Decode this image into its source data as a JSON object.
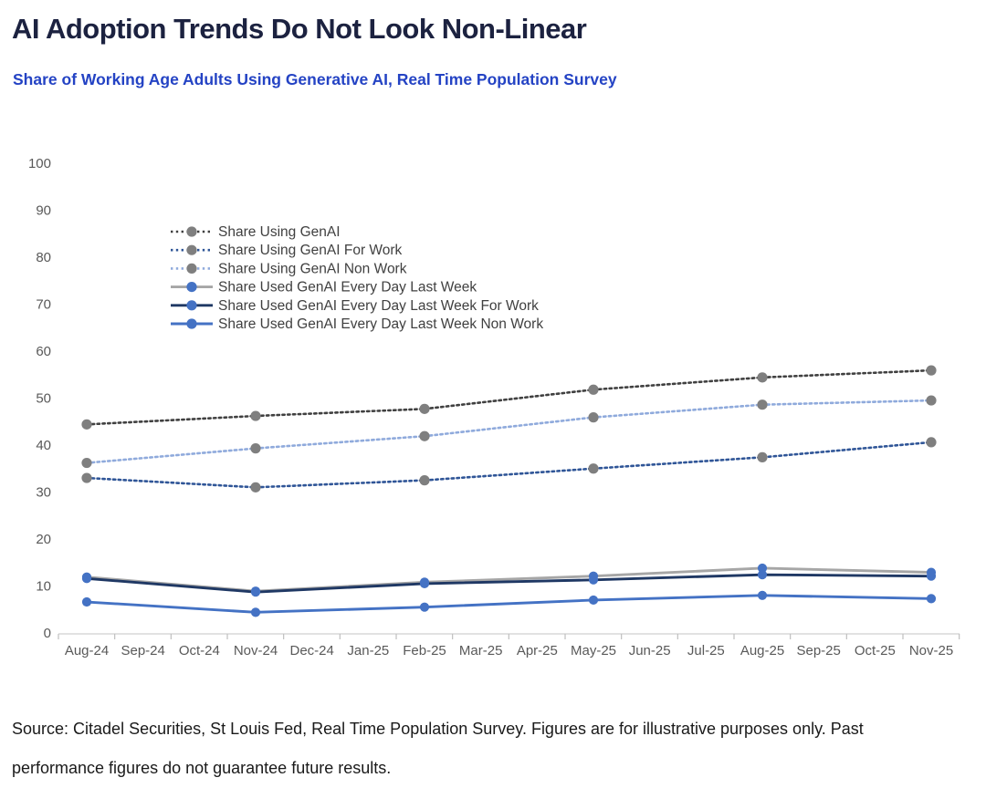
{
  "header": {
    "title": "AI Adoption Trends Do Not Look Non-Linear",
    "subtitle": "Share of Working Age Adults Using Generative AI, Real Time Population Survey"
  },
  "footer": {
    "source_line1": "Source: Citadel Securities, St Louis Fed, Real Time Population Survey. Figures are for illustrative purposes only. Past",
    "source_line2": "performance figures do not guarantee future results."
  },
  "colors": {
    "title": "#1c2240",
    "subtitle": "#2443c4",
    "axis_label": "#595959",
    "legend_text": "#404040",
    "axis_line": "#d9d9d9",
    "tick": "#bfbfbf"
  },
  "chart_data": {
    "type": "line",
    "title": "",
    "xlabel": "",
    "ylabel": "",
    "ylim": [
      0,
      100
    ],
    "y_ticks": [
      0,
      10,
      20,
      30,
      40,
      50,
      60,
      70,
      80,
      90,
      100
    ],
    "grid": false,
    "legend_position": "inside-top-left",
    "x_labels": [
      "Aug-24",
      "Sep-24",
      "Oct-24",
      "Nov-24",
      "Dec-24",
      "Jan-25",
      "Feb-25",
      "Mar-25",
      "Apr-25",
      "May-25",
      "Jun-25",
      "Jul-25",
      "Aug-25",
      "Sep-25",
      "Oct-25",
      "Nov-25"
    ],
    "observation_months": [
      "Aug-24",
      "Nov-24",
      "Feb-25",
      "May-25",
      "Aug-25",
      "Nov-25"
    ],
    "observation_month_indices": [
      0,
      3,
      6,
      9,
      12,
      15
    ],
    "series": [
      {
        "name": "Share Using GenAI",
        "line_style": "dotted",
        "line_color": "#404040",
        "marker_color": "#7f7f7f",
        "values": [
          44.4,
          46.2,
          47.7,
          51.8,
          54.4,
          55.9
        ]
      },
      {
        "name": "Share Using GenAI For Work",
        "line_style": "dotted",
        "line_color": "#2f5597",
        "marker_color": "#7f7f7f",
        "values": [
          33.0,
          31.0,
          32.5,
          35.0,
          37.4,
          40.6
        ]
      },
      {
        "name": "Share Using GenAI Non Work",
        "line_style": "dotted",
        "line_color": "#8faadc",
        "marker_color": "#7f7f7f",
        "values": [
          36.2,
          39.3,
          41.9,
          45.9,
          48.6,
          49.5
        ]
      },
      {
        "name": "Share Used GenAI Every Day Last Week",
        "line_style": "solid",
        "line_color": "#a6a6a6",
        "marker_color": "#4472c4",
        "values": [
          11.9,
          8.9,
          10.8,
          12.1,
          13.8,
          12.9
        ]
      },
      {
        "name": "Share Used GenAI Every Day Last Week For Work",
        "line_style": "solid",
        "line_color": "#1f3864",
        "marker_color": "#4472c4",
        "values": [
          11.6,
          8.7,
          10.5,
          11.3,
          12.4,
          12.1
        ]
      },
      {
        "name": "Share Used GenAI Every Day Last Week Non Work",
        "line_style": "solid",
        "line_color": "#4472c4",
        "marker_color": "#4472c4",
        "values": [
          6.6,
          4.4,
          5.5,
          7.0,
          8.0,
          7.3
        ]
      }
    ]
  }
}
